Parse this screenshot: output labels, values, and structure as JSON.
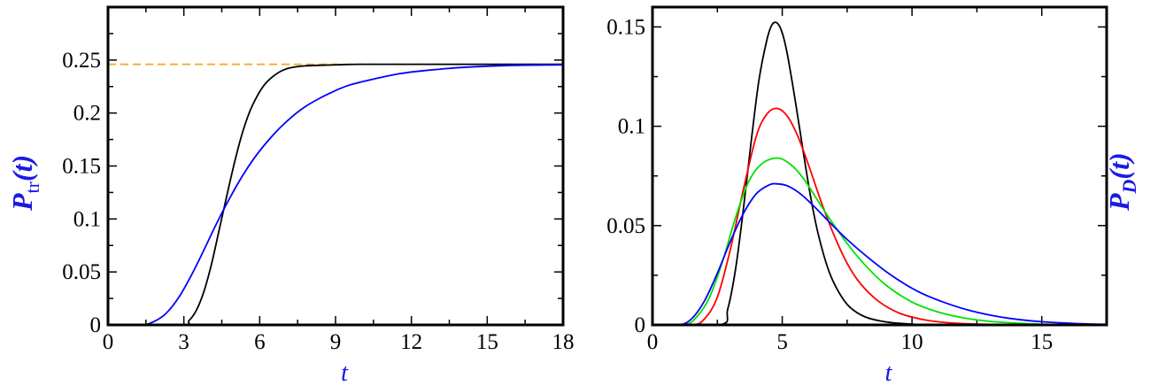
{
  "chart_data": [
    {
      "type": "line",
      "ylabel_main": "P",
      "ylabel_sub": "tr",
      "ylabel_arg": "(t)",
      "xlabel": "t",
      "xlim": [
        0,
        18
      ],
      "ylim": [
        0,
        0.3
      ],
      "x_ticks": [
        0,
        3,
        6,
        9,
        12,
        15,
        18
      ],
      "x_tick_labels": [
        "0",
        "3",
        "6",
        "9",
        "12",
        "15",
        "18"
      ],
      "y_ticks": [
        0,
        0.05,
        0.1,
        0.15,
        0.2,
        0.25
      ],
      "y_tick_labels": [
        "0",
        "0.05",
        "0.1",
        "0.15",
        "0.2",
        "0.25"
      ],
      "reference_line": {
        "y": 0.246,
        "color": "#f5a623",
        "style": "dashed"
      },
      "series": [
        {
          "color": "#000000",
          "x": [
            2.9,
            3.2,
            3.5,
            3.8,
            4.1,
            4.4,
            4.7,
            5.0,
            5.3,
            5.6,
            5.9,
            6.2,
            6.5,
            6.8,
            7.1,
            7.4,
            7.8,
            8.3,
            9.0,
            10.0,
            12.0,
            15.0,
            18.0
          ],
          "y": [
            0,
            0.004,
            0.014,
            0.032,
            0.058,
            0.09,
            0.122,
            0.153,
            0.18,
            0.201,
            0.216,
            0.227,
            0.234,
            0.239,
            0.242,
            0.2435,
            0.2445,
            0.245,
            0.2455,
            0.246,
            0.246,
            0.246,
            0.246
          ]
        },
        {
          "color": "#0000ff",
          "x": [
            1.3,
            1.8,
            2.3,
            2.8,
            3.3,
            3.8,
            4.3,
            4.8,
            5.3,
            5.8,
            6.3,
            6.8,
            7.3,
            7.8,
            8.3,
            8.8,
            9.5,
            10.5,
            11.5,
            12.5,
            14.0,
            16.0,
            18.0
          ],
          "y": [
            0,
            0.003,
            0.011,
            0.026,
            0.047,
            0.071,
            0.096,
            0.119,
            0.14,
            0.158,
            0.173,
            0.186,
            0.197,
            0.206,
            0.213,
            0.219,
            0.226,
            0.232,
            0.237,
            0.24,
            0.243,
            0.245,
            0.2455
          ]
        }
      ]
    },
    {
      "type": "line",
      "ylabel_main": "P",
      "ylabel_sub": "D",
      "ylabel_arg": "(t)",
      "xlabel": "t",
      "xlim": [
        0,
        17.5
      ],
      "ylim": [
        0,
        0.16
      ],
      "x_ticks": [
        0,
        5,
        10,
        15
      ],
      "x_tick_labels": [
        "0",
        "5",
        "10",
        "15"
      ],
      "y_ticks": [
        0,
        0.05,
        0.1,
        0.15
      ],
      "y_tick_labels": [
        "0",
        "0.05",
        "0.1",
        "0.15"
      ],
      "series": [
        {
          "color": "#000000",
          "x": [
            2.6,
            2.9,
            3.2,
            3.5,
            3.8,
            4.1,
            4.4,
            4.6,
            4.8,
            5.0,
            5.2,
            5.5,
            5.8,
            6.1,
            6.4,
            6.8,
            7.2,
            7.6,
            8.2,
            9.0,
            10.0,
            11.0,
            12.5
          ],
          "y": [
            0,
            0.008,
            0.028,
            0.058,
            0.092,
            0.123,
            0.143,
            0.151,
            0.152,
            0.147,
            0.136,
            0.113,
            0.088,
            0.064,
            0.045,
            0.027,
            0.016,
            0.009,
            0.004,
            0.0015,
            0.0004,
            0.0001,
            0
          ]
        },
        {
          "color": "#ff0000",
          "x": [
            1.5,
            2.0,
            2.5,
            3.0,
            3.5,
            4.0,
            4.4,
            4.8,
            5.2,
            5.6,
            6.0,
            6.5,
            7.0,
            7.5,
            8.0,
            8.7,
            9.5,
            10.5,
            11.5,
            12.5,
            14.0
          ],
          "y": [
            0,
            0.003,
            0.014,
            0.038,
            0.068,
            0.095,
            0.106,
            0.109,
            0.105,
            0.095,
            0.081,
            0.062,
            0.045,
            0.031,
            0.021,
            0.012,
            0.006,
            0.0025,
            0.001,
            0.0004,
            0
          ]
        },
        {
          "color": "#00e000",
          "x": [
            1.2,
            1.7,
            2.2,
            2.7,
            3.2,
            3.7,
            4.2,
            4.8,
            5.3,
            5.8,
            6.3,
            6.8,
            7.5,
            8.2,
            9.0,
            10.0,
            11.0,
            12.0,
            13.0,
            14.5,
            16.0
          ],
          "y": [
            0,
            0.004,
            0.014,
            0.032,
            0.054,
            0.072,
            0.081,
            0.084,
            0.081,
            0.074,
            0.064,
            0.054,
            0.041,
            0.03,
            0.02,
            0.0115,
            0.0065,
            0.0035,
            0.0018,
            0.0006,
            0
          ]
        },
        {
          "color": "#0000ff",
          "x": [
            1.0,
            1.5,
            2.0,
            2.5,
            3.0,
            3.5,
            4.0,
            4.5,
            4.8,
            5.2,
            5.7,
            6.2,
            6.8,
            7.5,
            8.3,
            9.2,
            10.2,
            11.2,
            12.3,
            13.5,
            15.0,
            16.5,
            17.5
          ],
          "y": [
            0,
            0.003,
            0.012,
            0.026,
            0.042,
            0.056,
            0.066,
            0.0705,
            0.071,
            0.07,
            0.066,
            0.06,
            0.052,
            0.043,
            0.034,
            0.025,
            0.017,
            0.0115,
            0.007,
            0.0038,
            0.0016,
            0.0006,
            0.0003
          ]
        }
      ]
    }
  ]
}
